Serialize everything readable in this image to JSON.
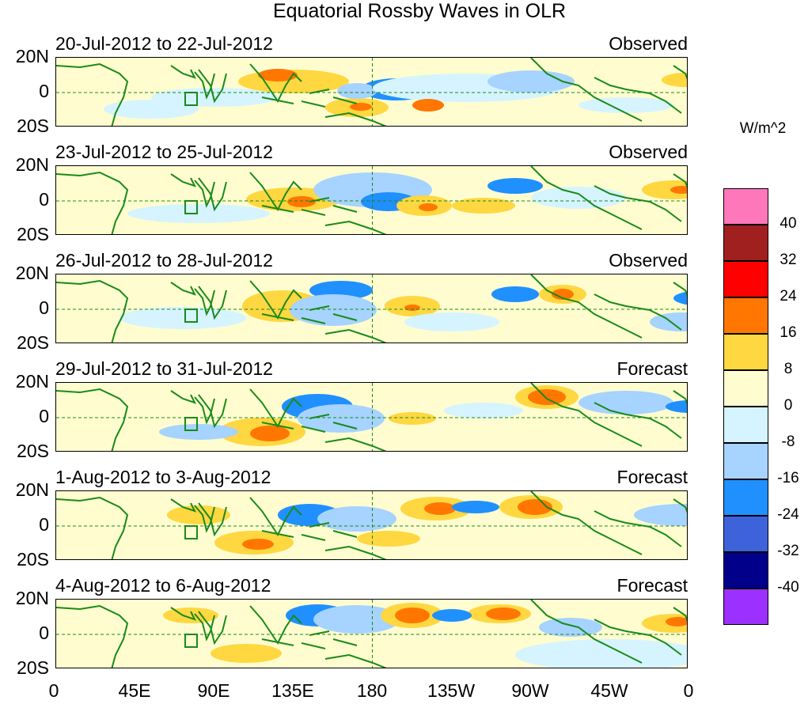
{
  "title": "Equatorial Rossby Waves in OLR",
  "units": "W/m^2",
  "panels": [
    {
      "date_range": "20-Jul-2012 to 22-Jul-2012",
      "kind": "Observed"
    },
    {
      "date_range": "23-Jul-2012 to 25-Jul-2012",
      "kind": "Observed"
    },
    {
      "date_range": "26-Jul-2012 to 28-Jul-2012",
      "kind": "Observed"
    },
    {
      "date_range": "29-Jul-2012 to 31-Jul-2012",
      "kind": "Forecast"
    },
    {
      "date_range": "1-Aug-2012 to 3-Aug-2012",
      "kind": "Forecast"
    },
    {
      "date_range": "4-Aug-2012 to 6-Aug-2012",
      "kind": "Forecast"
    }
  ],
  "lat_labels": [
    "20N",
    "0",
    "20S"
  ],
  "lon_labels": [
    "0",
    "45E",
    "90E",
    "135E",
    "180",
    "135W",
    "90W",
    "45W",
    "0"
  ],
  "colorbar": {
    "labels": [
      "40",
      "32",
      "24",
      "16",
      "8",
      "0",
      "-8",
      "-16",
      "-24",
      "-32",
      "-40"
    ],
    "colors": [
      "#ff77bb",
      "#a02020",
      "#ff0000",
      "#ff7700",
      "#ffd740",
      "#fffdd0",
      "#d5f4ff",
      "#a6d3ff",
      "#2090ff",
      "#3e62da",
      "#00008b",
      "#9b30ff"
    ]
  },
  "colors": {
    "land_outline": "#1a8a1a",
    "map_background": "#fffdd0",
    "dashed_lines": "#1a8a1a"
  }
}
